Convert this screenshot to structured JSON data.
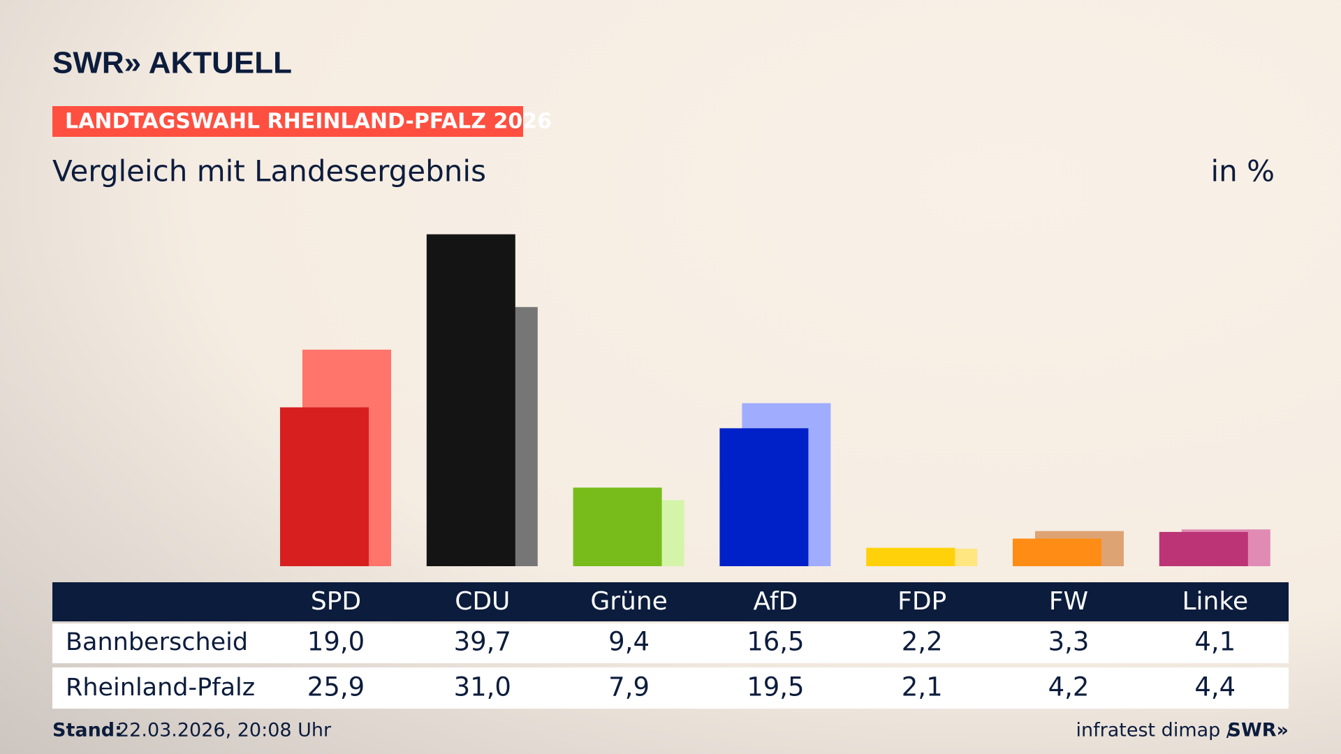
{
  "header": {
    "brand": "SWR» AKTUELL",
    "tag": "LANDTAGSWAHL RHEINLAND-PFALZ 2026"
  },
  "chart_data": {
    "type": "bar",
    "title": "Vergleich mit Landesergebnis",
    "unit": "in %",
    "categories": [
      "SPD",
      "CDU",
      "Grüne",
      "AfD",
      "FDP",
      "FW",
      "Linke"
    ],
    "ylim": [
      0,
      40
    ],
    "series": [
      {
        "name": "Bannberscheid",
        "colors": [
          "#d71f1f",
          "#141414",
          "#78bc1b",
          "#0021c7",
          "#ffd10a",
          "#ff8c14",
          "#bc3475"
        ],
        "values": [
          19.0,
          39.7,
          9.4,
          16.5,
          2.2,
          3.3,
          4.1
        ],
        "value_labels": [
          "19,0",
          "39,7",
          "9,4",
          "16,5",
          "2,2",
          "3,3",
          "4,1"
        ]
      },
      {
        "name": "Rheinland-Pfalz",
        "colors": [
          "#ff746b",
          "#767676",
          "#d4f5a9",
          "#a0adff",
          "#ffe680",
          "#dea373",
          "#e08bb4"
        ],
        "values": [
          25.9,
          31.0,
          7.9,
          19.5,
          2.1,
          4.2,
          4.4
        ],
        "value_labels": [
          "25,9",
          "31,0",
          "7,9",
          "19,5",
          "2,1",
          "4,2",
          "4,4"
        ]
      }
    ]
  },
  "footer": {
    "stand_label": "Stand:",
    "stand_value": "22.03.2026, 20:08 Uhr",
    "source": "infratest dimap /",
    "brand": "SWR»"
  }
}
